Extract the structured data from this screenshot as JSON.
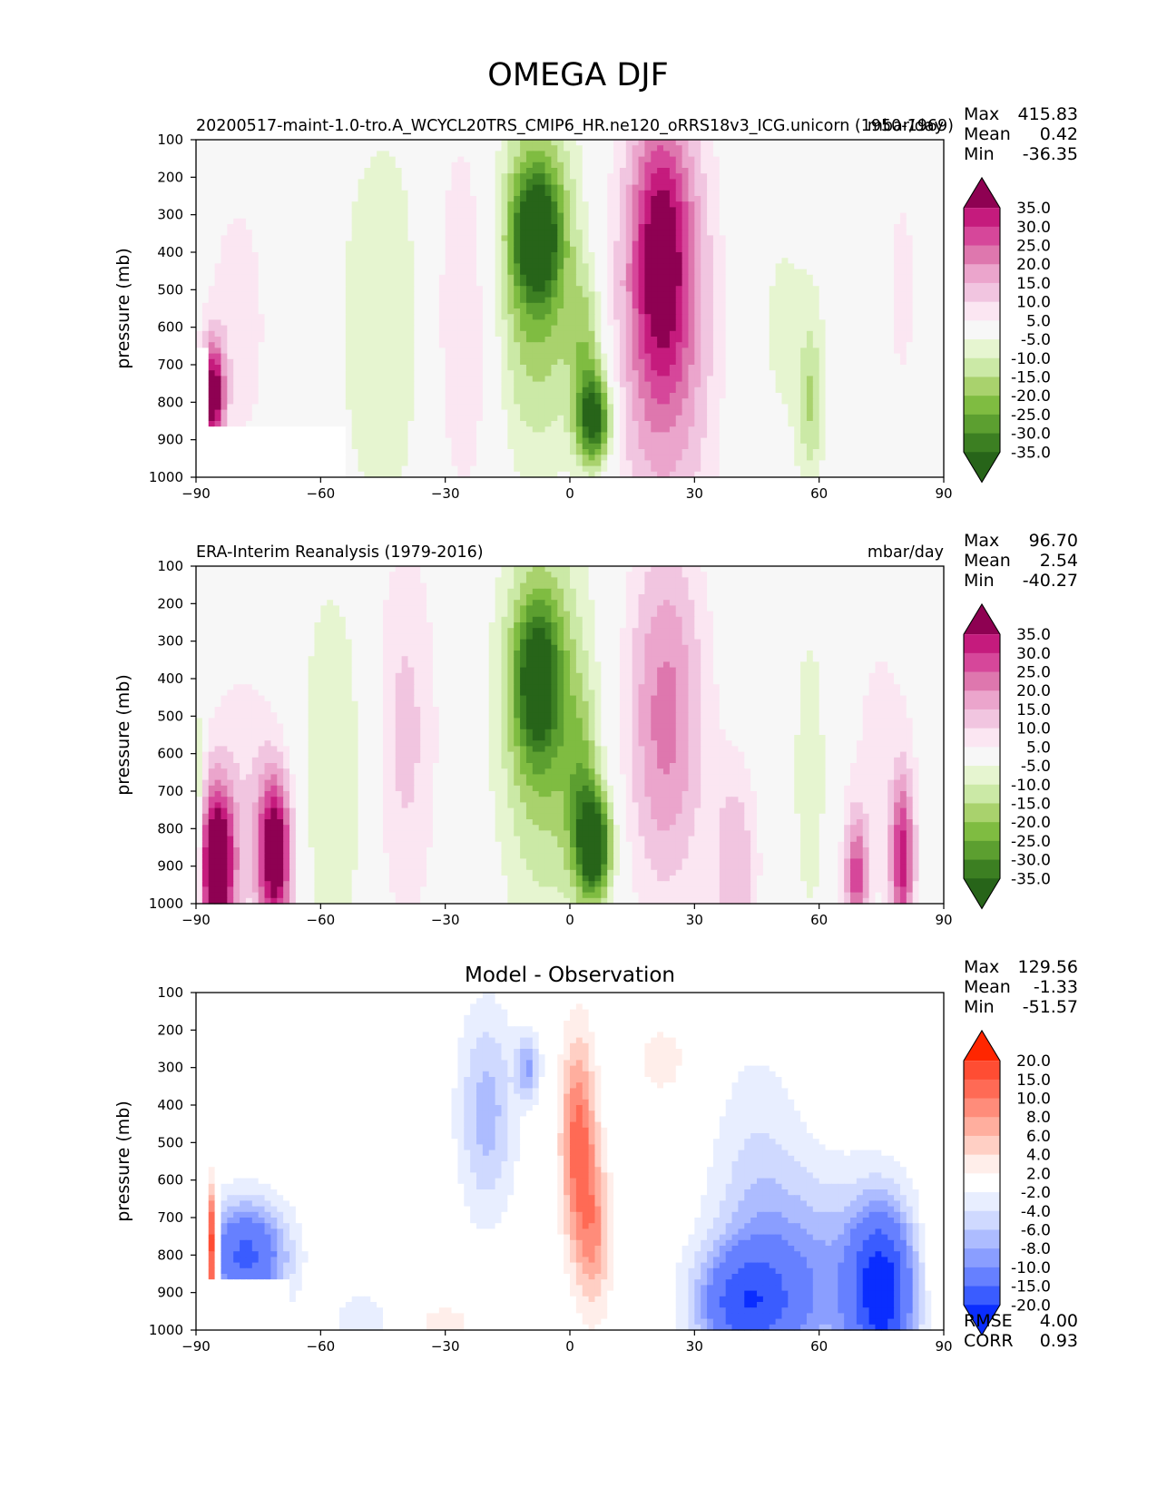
{
  "figure": {
    "title": "OMEGA DJF"
  },
  "chart_data": [
    {
      "type": "heatmap",
      "panel": "test",
      "title_left": "20200517-maint-1.0-tro.A_WCYCL20TRS_CMIP6_HR.ne120_oRRS18v3_ICG.unicorn (1950-1969)",
      "title_right": "mbar/day",
      "title_center": "",
      "xlabel": "",
      "ylabel": "pressure (mb)",
      "xlim": [
        -90,
        90
      ],
      "ylim": [
        1000,
        100
      ],
      "xticks": [
        "−90",
        "−60",
        "−30",
        "0",
        "30",
        "60",
        "90"
      ],
      "yticks": [
        "100",
        "200",
        "300",
        "400",
        "500",
        "600",
        "700",
        "800",
        "900",
        "1000"
      ],
      "stats": {
        "labels": [
          "Max",
          "Mean",
          "Min"
        ],
        "values": [
          "415.83",
          "0.42",
          "-36.35"
        ]
      },
      "colorbar": {
        "labels": [
          "35.0",
          "30.0",
          "25.0",
          "20.0",
          "15.0",
          "10.0",
          "5.0",
          "-5.0",
          "-10.0",
          "-15.0",
          "-20.0",
          "-25.0",
          "-30.0",
          "-35.0"
        ],
        "colors": [
          "#8e0152",
          "#c51b7d",
          "#d6479a",
          "#de77ae",
          "#eba5cc",
          "#f1c5e0",
          "#fbe6f2",
          "#f7f7f7",
          "#e6f5d0",
          "#cbe9a6",
          "#a9d26d",
          "#7fbc41",
          "#5c9f30",
          "#3c7f22",
          "#276419"
        ]
      },
      "blobs": [
        {
          "x": 6,
          "p": 850,
          "v": -38,
          "sx": 3,
          "sp": 90
        },
        {
          "x": -8,
          "p": 350,
          "v": -32,
          "sx": 4,
          "sp": 120
        },
        {
          "x": -8,
          "p": 450,
          "v": -22,
          "sx": 8,
          "sp": 350
        },
        {
          "x": 4,
          "p": 650,
          "v": -15,
          "sx": 3,
          "sp": 150
        },
        {
          "x": -45,
          "p": 600,
          "v": -10,
          "sx": 8,
          "sp": 400
        },
        {
          "x": 58,
          "p": 800,
          "v": -12,
          "sx": 2,
          "sp": 150
        },
        {
          "x": 50,
          "p": 600,
          "v": -6,
          "sx": 10,
          "sp": 400
        },
        {
          "x": 22,
          "p": 400,
          "v": 26,
          "sx": 5,
          "sp": 250
        },
        {
          "x": 23,
          "p": 600,
          "v": 20,
          "sx": 10,
          "sp": 450
        },
        {
          "x": -25,
          "p": 560,
          "v": 12,
          "sx": 6,
          "sp": 380
        },
        {
          "x": -86,
          "p": 780,
          "v": 40,
          "sx": 2,
          "sp": 100
        },
        {
          "x": -80,
          "p": 600,
          "v": 8,
          "sx": 6,
          "sp": 300
        },
        {
          "x": 80,
          "p": 500,
          "v": 6,
          "sx": 4,
          "sp": 350
        }
      ],
      "mask": [
        [
          -90,
          -54,
          870,
          1000
        ],
        [
          -90,
          -87,
          650,
          870
        ]
      ]
    },
    {
      "type": "heatmap",
      "panel": "reference",
      "title_left": "ERA-Interim Reanalysis (1979-2016)",
      "title_right": "mbar/day",
      "title_center": "",
      "xlabel": "",
      "ylabel": "pressure (mb)",
      "xlim": [
        -90,
        90
      ],
      "ylim": [
        1000,
        100
      ],
      "xticks": [
        "−90",
        "−60",
        "−30",
        "0",
        "30",
        "60",
        "90"
      ],
      "yticks": [
        "100",
        "200",
        "300",
        "400",
        "500",
        "600",
        "700",
        "800",
        "900",
        "1000"
      ],
      "stats": {
        "labels": [
          "Max",
          "Mean",
          "Min"
        ],
        "values": [
          "96.70",
          "2.54",
          "-40.27"
        ]
      },
      "colorbar": {
        "labels": [
          "35.0",
          "30.0",
          "25.0",
          "20.0",
          "15.0",
          "10.0",
          "5.0",
          "-5.0",
          "-10.0",
          "-15.0",
          "-20.0",
          "-25.0",
          "-30.0",
          "-35.0"
        ],
        "colors": [
          "#8e0152",
          "#c51b7d",
          "#d6479a",
          "#de77ae",
          "#eba5cc",
          "#f1c5e0",
          "#fbe6f2",
          "#f7f7f7",
          "#e6f5d0",
          "#cbe9a6",
          "#a9d26d",
          "#7fbc41",
          "#5c9f30",
          "#3c7f22",
          "#276419"
        ]
      },
      "blobs": [
        {
          "x": 6,
          "p": 850,
          "v": -40,
          "sx": 3,
          "sp": 100
        },
        {
          "x": -8,
          "p": 400,
          "v": -28,
          "sx": 4,
          "sp": 150
        },
        {
          "x": -6,
          "p": 500,
          "v": -20,
          "sx": 8,
          "sp": 380
        },
        {
          "x": 3,
          "p": 700,
          "v": -14,
          "sx": 3,
          "sp": 180
        },
        {
          "x": -57,
          "p": 650,
          "v": -10,
          "sx": 7,
          "sp": 400
        },
        {
          "x": 58,
          "p": 650,
          "v": -10,
          "sx": 3,
          "sp": 300
        },
        {
          "x": 23,
          "p": 500,
          "v": 22,
          "sx": 7,
          "sp": 350
        },
        {
          "x": -40,
          "p": 550,
          "v": 12,
          "sx": 6,
          "sp": 380
        },
        {
          "x": -85,
          "p": 900,
          "v": 48,
          "sx": 3,
          "sp": 150
        },
        {
          "x": -71,
          "p": 870,
          "v": 42,
          "sx": 3,
          "sp": 150
        },
        {
          "x": -78,
          "p": 700,
          "v": 8,
          "sx": 8,
          "sp": 300
        },
        {
          "x": 80,
          "p": 880,
          "v": 30,
          "sx": 2,
          "sp": 150
        },
        {
          "x": 69,
          "p": 930,
          "v": 25,
          "sx": 2,
          "sp": 120
        },
        {
          "x": 40,
          "p": 900,
          "v": 14,
          "sx": 4,
          "sp": 200
        },
        {
          "x": 75,
          "p": 600,
          "v": 6,
          "sx": 8,
          "sp": 400
        },
        {
          "x": -90,
          "p": 750,
          "v": -20,
          "sx": 1.2,
          "sp": 200
        }
      ],
      "mask": []
    },
    {
      "type": "heatmap",
      "panel": "difference",
      "title_left": "",
      "title_right": "",
      "title_center": "Model - Observation",
      "xlabel": "",
      "ylabel": "pressure (mb)",
      "xlim": [
        -90,
        90
      ],
      "ylim": [
        1000,
        100
      ],
      "xticks": [
        "−90",
        "−60",
        "−30",
        "0",
        "30",
        "60",
        "90"
      ],
      "yticks": [
        "100",
        "200",
        "300",
        "400",
        "500",
        "600",
        "700",
        "800",
        "900",
        "1000"
      ],
      "stats": {
        "labels": [
          "Max",
          "Mean",
          "Min"
        ],
        "values": [
          "129.56",
          "-1.33",
          "-51.57"
        ]
      },
      "extra_stats": {
        "labels": [
          "RMSE",
          "CORR"
        ],
        "values": [
          "4.00",
          "0.93"
        ]
      },
      "colorbar": {
        "labels": [
          "20.0",
          "15.0",
          "10.0",
          "8.0",
          "6.0",
          "4.0",
          "2.0",
          "-2.0",
          "-4.0",
          "-6.0",
          "-8.0",
          "-10.0",
          "-15.0",
          "-20.0"
        ],
        "colors": [
          "#ff2600",
          "#ff4d33",
          "#ff6a55",
          "#ff8c7a",
          "#ffae9e",
          "#ffcfc4",
          "#ffeeea",
          "#ffffff",
          "#e8eeff",
          "#cfd9ff",
          "#adbcff",
          "#8a9eff",
          "#6680ff",
          "#3a5cff",
          "#0a2dff"
        ]
      },
      "blobs": [
        {
          "x": 2,
          "p": 500,
          "v": 11,
          "sx": 3,
          "sp": 200
        },
        {
          "x": 6,
          "p": 750,
          "v": 7,
          "sx": 3,
          "sp": 150
        },
        {
          "x": 22,
          "p": 280,
          "v": 4,
          "sx": 4,
          "sp": 60
        },
        {
          "x": -20,
          "p": 420,
          "v": -7,
          "sx": 5,
          "sp": 200
        },
        {
          "x": -10,
          "p": 300,
          "v": -8,
          "sx": 2,
          "sp": 60
        },
        {
          "x": -78,
          "p": 800,
          "v": -16,
          "sx": 7,
          "sp": 100
        },
        {
          "x": 42,
          "p": 930,
          "v": -14,
          "sx": 8,
          "sp": 100
        },
        {
          "x": 75,
          "p": 900,
          "v": -20,
          "sx": 5,
          "sp": 150
        },
        {
          "x": 60,
          "p": 870,
          "v": -8,
          "sx": 15,
          "sp": 200
        },
        {
          "x": 45,
          "p": 650,
          "v": -4,
          "sx": 8,
          "sp": 300
        },
        {
          "x": -86,
          "p": 780,
          "v": 24,
          "sx": 1,
          "sp": 100
        },
        {
          "x": -50,
          "p": 980,
          "v": -4,
          "sx": 5,
          "sp": 60
        },
        {
          "x": -30,
          "p": 980,
          "v": 3,
          "sx": 6,
          "sp": 40
        },
        {
          "x": 88,
          "p": 700,
          "v": 3,
          "sx": 2,
          "sp": 200
        }
      ],
      "mask": [
        [
          -90,
          -68,
          870,
          1000
        ],
        [
          -90,
          -87,
          650,
          870
        ]
      ]
    }
  ]
}
